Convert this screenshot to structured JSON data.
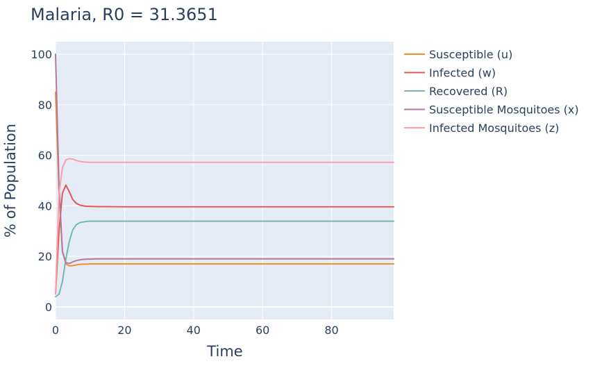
{
  "chart_data": {
    "type": "line",
    "title": "Malaria, R0 = 31.3651",
    "xlabel": "Time",
    "ylabel": "% of Population",
    "xlim": [
      0,
      98
    ],
    "ylim": [
      -5,
      105
    ],
    "x_ticks": [
      0,
      20,
      40,
      60,
      80
    ],
    "y_ticks": [
      0,
      20,
      40,
      60,
      80,
      100
    ],
    "x_tick_labels": [
      "0",
      "20",
      "40",
      "60",
      "80"
    ],
    "y_tick_labels": [
      "0",
      "20",
      "40",
      "60",
      "80",
      "100"
    ],
    "grid": true,
    "legend_position": "right",
    "plot_background": "#e5ecf6",
    "x": [
      0,
      1,
      2,
      3,
      4,
      5,
      6,
      7,
      8,
      9,
      10,
      12,
      15,
      20,
      30,
      40,
      50,
      60,
      70,
      80,
      90,
      98
    ],
    "series": [
      {
        "name": "Susceptible (u)",
        "color": "#f28e2b",
        "values": [
          85,
          45,
          22,
          17,
          16.2,
          16.3,
          16.6,
          16.8,
          16.9,
          16.9,
          17,
          17,
          17,
          17,
          17,
          17,
          17,
          17,
          17,
          17,
          17,
          17
        ]
      },
      {
        "name": "Infected (w)",
        "color": "#e15759",
        "values": [
          5,
          30,
          45,
          48.2,
          45.5,
          42.5,
          41,
          40.3,
          40,
          39.8,
          39.8,
          39.7,
          39.7,
          39.6,
          39.6,
          39.6,
          39.6,
          39.6,
          39.6,
          39.6,
          39.6,
          39.6
        ]
      },
      {
        "name": "Recovered (R)",
        "color": "#76b7b2",
        "values": [
          4,
          5,
          10,
          19,
          26,
          30.5,
          32.5,
          33.3,
          33.6,
          33.8,
          33.9,
          33.9,
          33.9,
          33.9,
          33.9,
          33.9,
          33.9,
          33.9,
          33.9,
          33.9,
          33.9,
          33.9
        ]
      },
      {
        "name": "Susceptible Mosquitoes (x)",
        "color": "#b07aa1",
        "values": [
          100,
          48,
          22,
          17.5,
          17.2,
          17.8,
          18.3,
          18.6,
          18.8,
          18.9,
          18.9,
          19,
          19,
          19,
          19,
          19,
          19,
          19,
          19,
          19,
          19,
          19
        ]
      },
      {
        "name": "Infected Mosquitoes (z)",
        "color": "#ff9da7",
        "values": [
          5,
          45,
          55,
          58.2,
          58.7,
          58.5,
          58,
          57.6,
          57.4,
          57.3,
          57.2,
          57.2,
          57.2,
          57.2,
          57.2,
          57.2,
          57.2,
          57.2,
          57.2,
          57.2,
          57.2,
          57.2
        ]
      }
    ]
  }
}
